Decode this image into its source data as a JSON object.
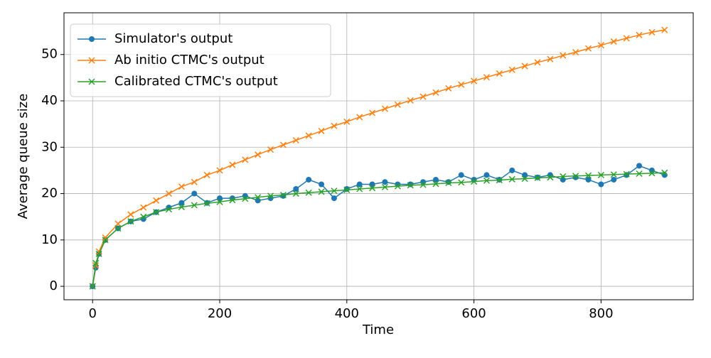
{
  "chart_data": {
    "type": "line",
    "xlabel": "Time",
    "ylabel": "Average queue size",
    "x": [
      0,
      5,
      10,
      20,
      40,
      60,
      80,
      100,
      120,
      140,
      160,
      180,
      200,
      220,
      240,
      260,
      280,
      300,
      320,
      340,
      360,
      380,
      400,
      420,
      440,
      460,
      480,
      500,
      520,
      540,
      560,
      580,
      600,
      620,
      640,
      660,
      680,
      700,
      720,
      740,
      760,
      780,
      800,
      820,
      840,
      860,
      880,
      900
    ],
    "series": [
      {
        "name": "Simulator's output",
        "color": "#1f77b4",
        "marker": "o",
        "values": [
          0,
          4,
          7,
          10,
          12.5,
          14,
          14.5,
          16,
          17,
          18,
          20,
          18,
          19,
          19,
          19.5,
          18.5,
          19,
          19.5,
          21,
          23,
          22,
          19,
          21,
          22,
          22,
          22.5,
          22,
          22,
          22.5,
          23,
          22.5,
          24,
          23,
          24,
          23,
          25,
          24,
          23.5,
          24,
          23,
          23.5,
          23,
          22,
          23,
          24,
          26,
          25,
          24
        ]
      },
      {
        "name": "Ab initio CTMC's output",
        "color": "#ff7f0e",
        "marker": "x",
        "values": [
          0,
          4.5,
          7.5,
          10.5,
          13.5,
          15.5,
          17,
          18.5,
          20,
          21.5,
          22.5,
          24,
          25,
          26.2,
          27.3,
          28.4,
          29.5,
          30.5,
          31.5,
          32.5,
          33.5,
          34.6,
          35.5,
          36.5,
          37.4,
          38.3,
          39.2,
          40.1,
          40.9,
          41.8,
          42.7,
          43.5,
          44.3,
          45.1,
          45.9,
          46.7,
          47.5,
          48.3,
          49,
          49.8,
          50.5,
          51.3,
          52,
          52.8,
          53.5,
          54.2,
          54.8,
          55.3
        ]
      },
      {
        "name": "Calibrated CTMC's output",
        "color": "#2ca02c",
        "marker": "x",
        "values": [
          0,
          5,
          7,
          10,
          12.5,
          14,
          15,
          16,
          16.6,
          17.1,
          17.5,
          17.9,
          18.2,
          18.6,
          18.9,
          19.2,
          19.5,
          19.7,
          20,
          20.2,
          20.4,
          20.6,
          20.8,
          21,
          21.2,
          21.4,
          21.6,
          21.8,
          21.9,
          22.1,
          22.3,
          22.4,
          22.6,
          22.8,
          22.9,
          23.1,
          23.2,
          23.4,
          23.5,
          23.7,
          23.8,
          23.9,
          24,
          24.1,
          24.2,
          24.3,
          24.4,
          24.5
        ]
      }
    ],
    "xlim": [
      -45,
      945
    ],
    "ylim": [
      -2.9,
      59
    ],
    "xticks": [
      0,
      200,
      400,
      600,
      800
    ],
    "yticks": [
      0,
      10,
      20,
      30,
      40,
      50
    ],
    "grid": true,
    "legend": "upper left"
  }
}
